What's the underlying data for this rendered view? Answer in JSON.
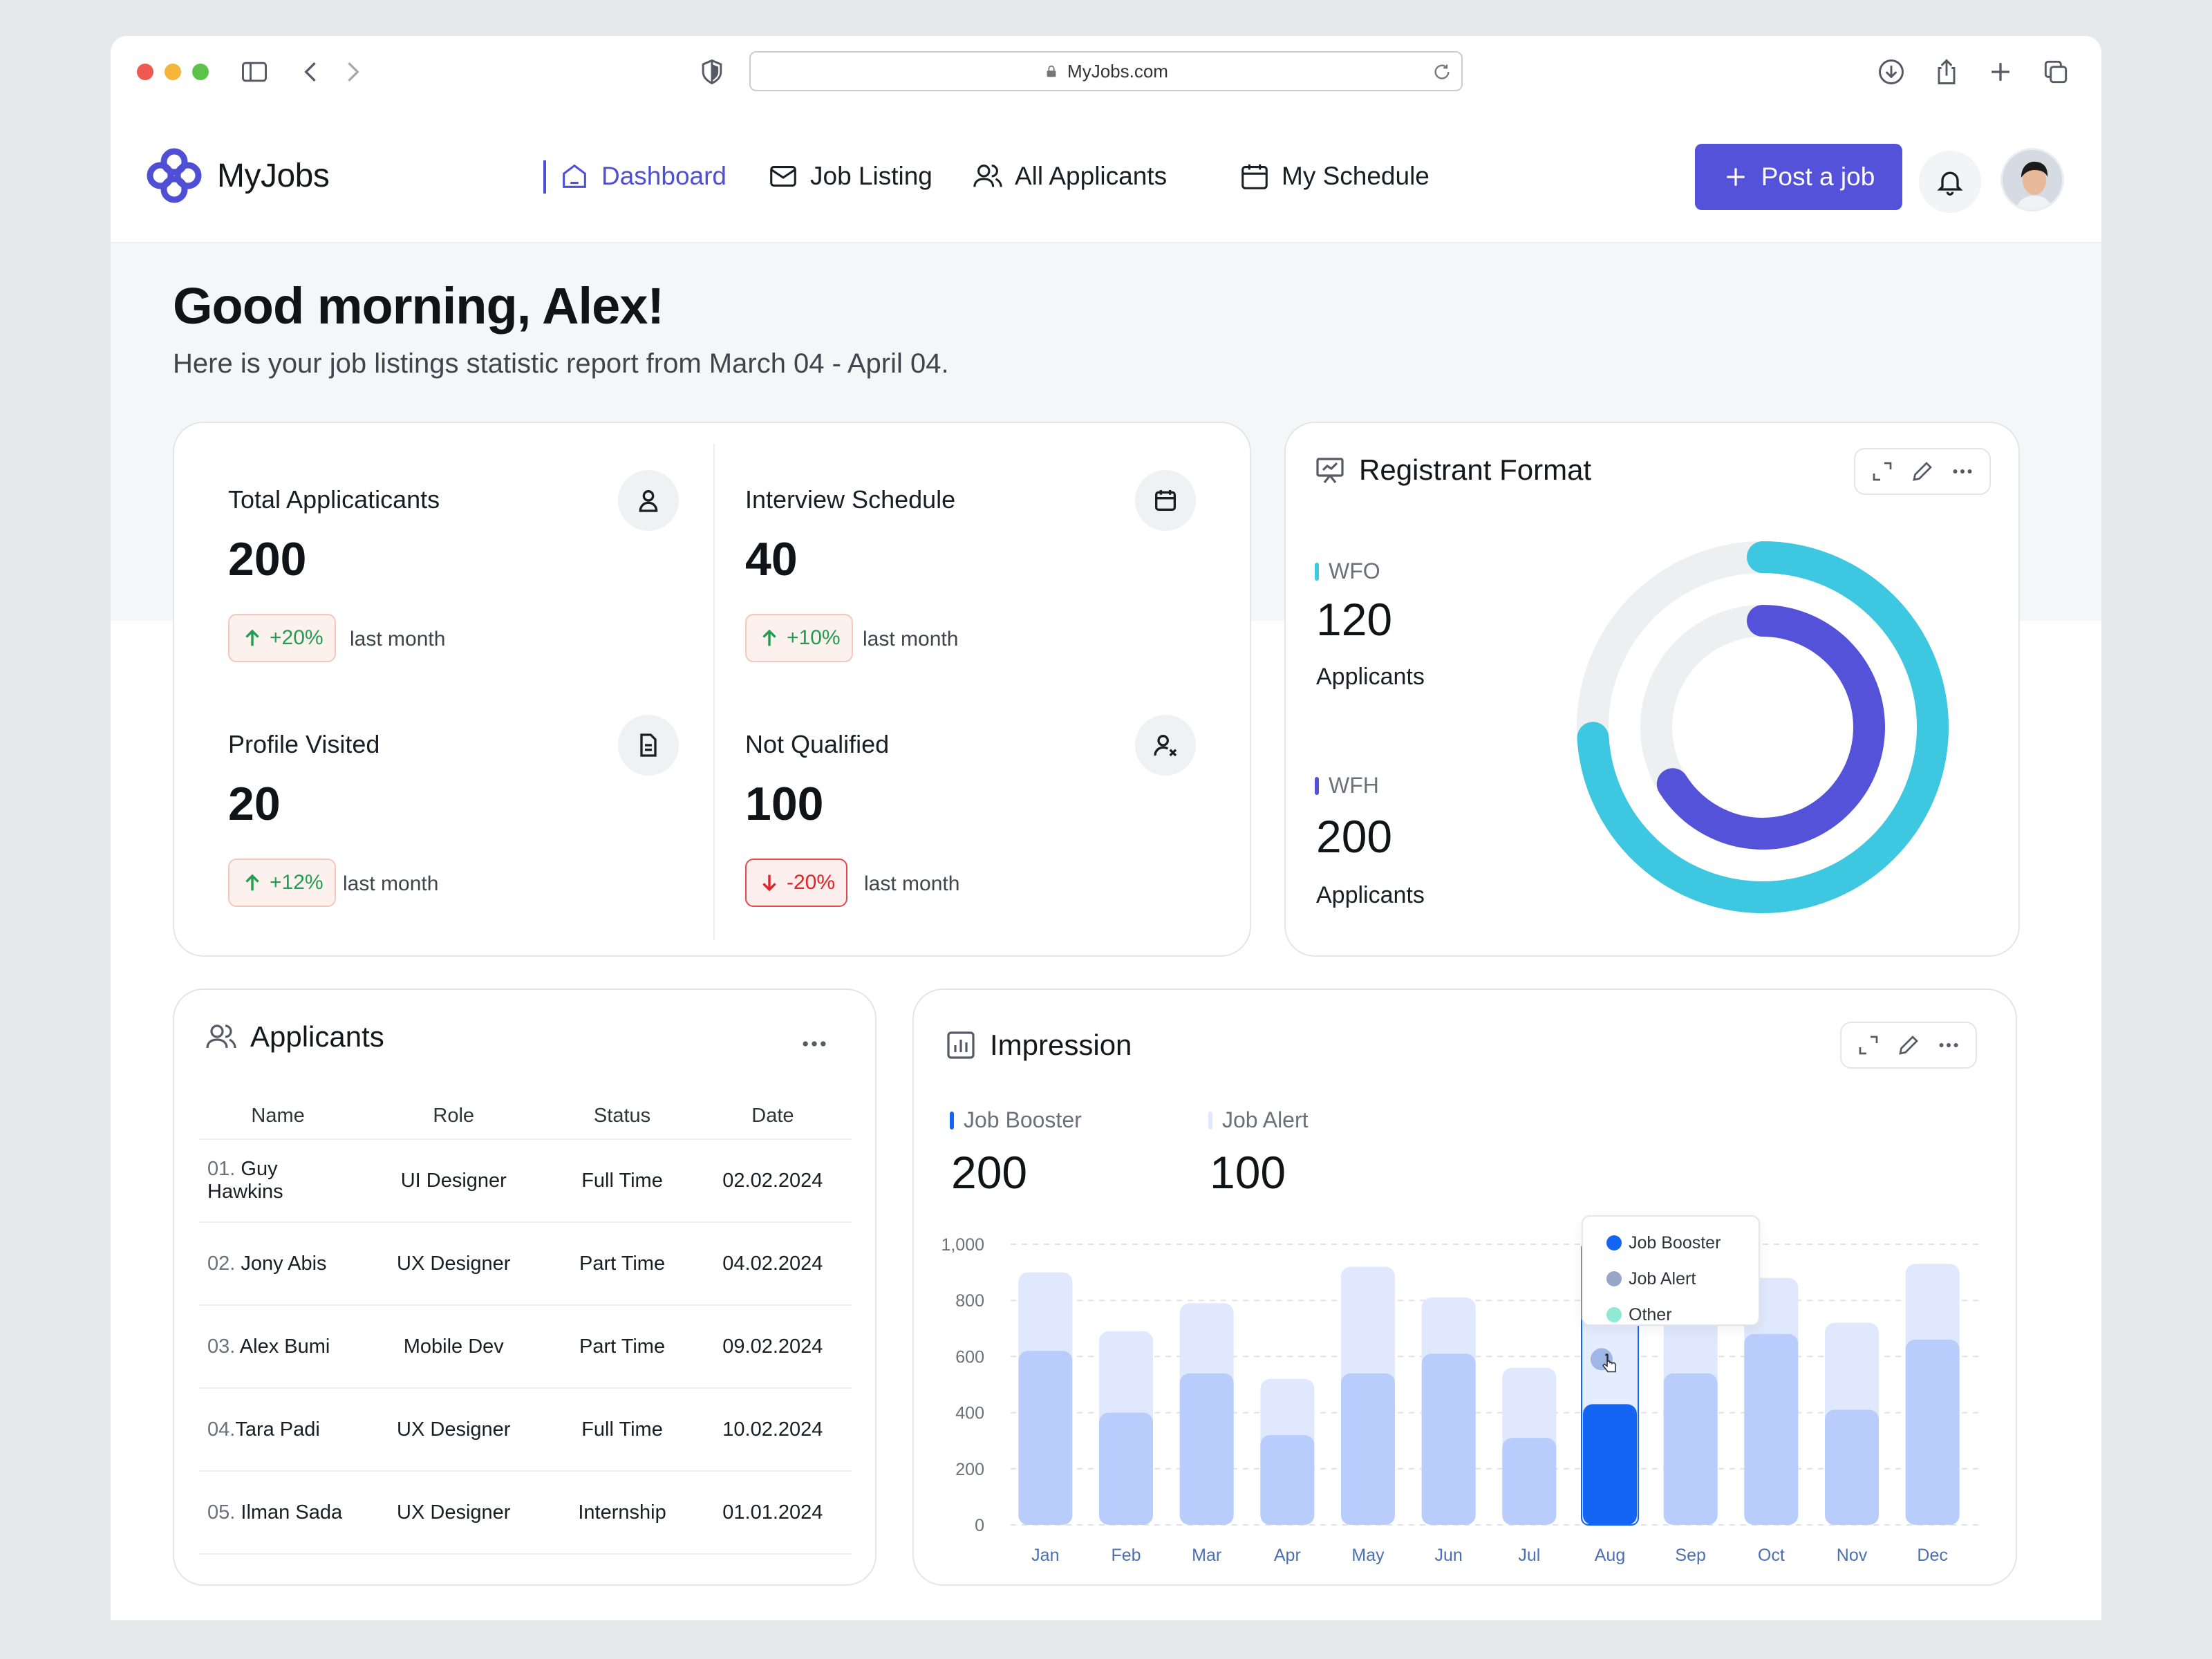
{
  "browser": {
    "url": "MyJobs.com"
  },
  "app": {
    "name": "MyJobs",
    "post_label": "Post a job"
  },
  "nav": [
    {
      "label": "Dashboard",
      "active": true
    },
    {
      "label": "Job Listing"
    },
    {
      "label": "All Applicants"
    },
    {
      "label": "My Schedule"
    }
  ],
  "greeting": {
    "title": "Good morning, Alex!",
    "subtitle": "Here is your job listings statistic report from  March 04  - April 04."
  },
  "stats": [
    {
      "label": "Total Applicaticants",
      "value": "200",
      "change": "+20%",
      "direction": "up",
      "note": "last month",
      "icon": "user-icon"
    },
    {
      "label": "Interview Schedule",
      "value": "40",
      "change": "+10%",
      "direction": "up",
      "note": "last month",
      "icon": "calendar-icon"
    },
    {
      "label": "Profile Visited",
      "value": "20",
      "change": "+12%",
      "direction": "up",
      "note": "last month",
      "icon": "document-icon"
    },
    {
      "label": "Not Qualified",
      "value": "100",
      "change": "-20%",
      "direction": "down",
      "note": "last month",
      "icon": "user-x-icon"
    }
  ],
  "registrant": {
    "title": "Registrant Format",
    "wfo": {
      "label": "WFO",
      "value": "120",
      "unit": "Applicants",
      "color": "#3dc7e0"
    },
    "wfh": {
      "label": "WFH",
      "value": "200",
      "unit": "Applicants",
      "color": "#5352d9"
    },
    "outer_fraction": 0.74,
    "inner_fraction": 0.66
  },
  "applicants": {
    "title": "Applicants",
    "columns": [
      "Name",
      "Role",
      "Status",
      "Date"
    ],
    "rows": [
      {
        "num": "01.",
        "name": "Guy Hawkins",
        "role": "UI Designer",
        "status": "Full Time",
        "date": "02.02.2024"
      },
      {
        "num": "02.",
        "name": "Jony Abis",
        "role": "UX Designer",
        "status": "Part Time",
        "date": "04.02.2024"
      },
      {
        "num": "03.",
        "name": "Alex Bumi",
        "role": "Mobile Dev",
        "status": "Part Time",
        "date": "09.02.2024"
      },
      {
        "num": "04.",
        "name": "Tara Padi",
        "role": "UX Designer",
        "status": "Full Time",
        "date": "10.02.2024"
      },
      {
        "num": "05.",
        "name": "Ilman Sada",
        "role": "UX Designer",
        "status": "Internship",
        "date": "01.01.2024"
      }
    ]
  },
  "impression": {
    "title": "Impression",
    "job_booster": {
      "label": "Job Booster",
      "value": "200",
      "color": "#1565f5"
    },
    "job_alert": {
      "label": "Job Alert",
      "value": "100",
      "color": "#dfe8fd"
    },
    "tooltip": [
      {
        "label": "Job Booster",
        "color": "#1565f5"
      },
      {
        "label": "Job Alert",
        "color": "#9aa6c8"
      },
      {
        "label": "Other",
        "color": "#8fe9d3"
      }
    ]
  },
  "chart_data": {
    "type": "bar",
    "categories": [
      "Jan",
      "Feb",
      "Mar",
      "Apr",
      "May",
      "Jun",
      "Jul",
      "Aug",
      "Sep",
      "Oct",
      "Nov",
      "Dec"
    ],
    "series": [
      {
        "name": "Job Booster",
        "values": [
          620,
          400,
          540,
          320,
          540,
          610,
          310,
          430,
          540,
          680,
          410,
          660
        ]
      },
      {
        "name": "Job Alert",
        "values": [
          900,
          690,
          790,
          520,
          920,
          810,
          560,
          1000,
          810,
          880,
          720,
          930
        ]
      }
    ],
    "highlight": "Aug",
    "yticks": [
      "0",
      "200",
      "400",
      "600",
      "800",
      "1,000"
    ],
    "ylim": [
      0,
      1000
    ],
    "colors": {
      "booster": "#b8cdfb",
      "alert": "#dfe8fd",
      "highlight": "#1565f5",
      "highlight_bg": "#e4edfe"
    }
  }
}
